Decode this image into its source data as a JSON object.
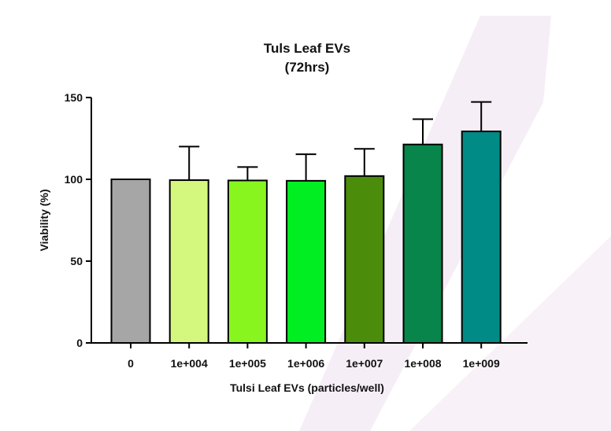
{
  "chart_data": {
    "type": "bar",
    "title": "Tuls Leaf EVs",
    "subtitle": "(72hrs)",
    "xlabel": "Tulsi Leaf EVs (particles/well)",
    "ylabel": "Viability (%)",
    "ylim": [
      0,
      150
    ],
    "yticks": [
      0,
      50,
      100,
      150
    ],
    "grid": false,
    "categories": [
      "0",
      "1e+004",
      "1e+005",
      "1e+006",
      "1e+007",
      "1e+008",
      "1e+009"
    ],
    "values": [
      100,
      99.5,
      99.3,
      99.1,
      102,
      121.3,
      129.3
    ],
    "error_upper": [
      0,
      20.5,
      8.2,
      16.2,
      16.6,
      15.5,
      18.0
    ],
    "colors": [
      "#a6a6a6",
      "#d4f77e",
      "#88f51f",
      "#00ee22",
      "#4b8c0b",
      "#07854a",
      "#008b86"
    ]
  }
}
